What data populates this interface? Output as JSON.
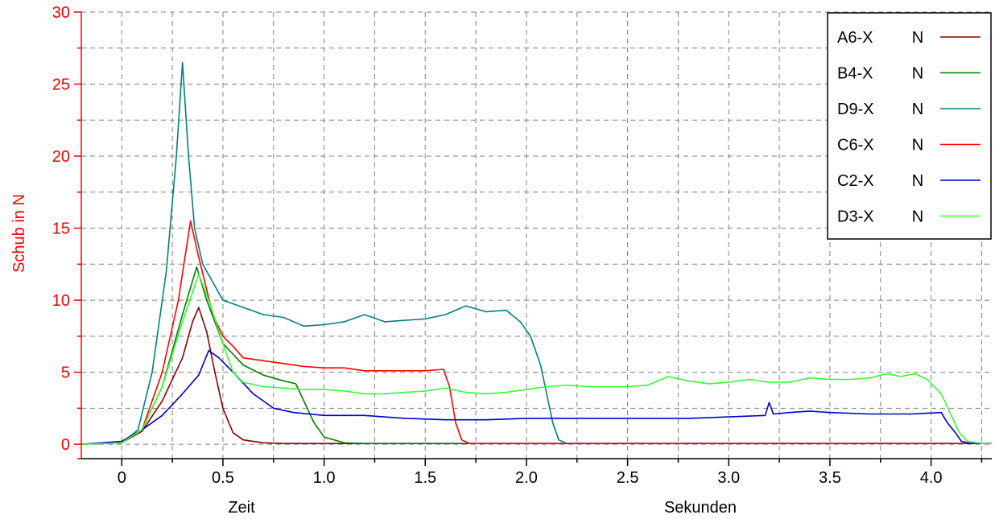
{
  "chart_data": {
    "type": "line",
    "ylabel": "Schub in N",
    "xlabel_left": "Zeit",
    "xlabel_right": "Sekunden",
    "xlim": [
      -0.2,
      4.3
    ],
    "ylim": [
      -1,
      30
    ],
    "x_ticks": [
      "0",
      "0.5",
      "1.0",
      "1.5",
      "2.0",
      "2.5",
      "3.0",
      "3.5",
      "4.0"
    ],
    "y_ticks": [
      "0",
      "5",
      "10",
      "15",
      "20",
      "25",
      "30"
    ],
    "grid": true,
    "legend_position": "top-right",
    "legend_unit": "N",
    "colors": {
      "axis_y": "#ff0000",
      "axis_x": "#000000",
      "grid": "#808080"
    },
    "series": [
      {
        "name": "A6-X",
        "color": "#8b0000",
        "points": [
          [
            -0.2,
            0.0
          ],
          [
            0.0,
            0.1
          ],
          [
            0.1,
            0.9
          ],
          [
            0.2,
            3.0
          ],
          [
            0.3,
            6.0
          ],
          [
            0.35,
            8.5
          ],
          [
            0.38,
            9.5
          ],
          [
            0.42,
            7.8
          ],
          [
            0.46,
            5.0
          ],
          [
            0.5,
            2.5
          ],
          [
            0.55,
            0.8
          ],
          [
            0.6,
            0.3
          ],
          [
            0.7,
            0.1
          ],
          [
            0.8,
            0.05
          ],
          [
            1.0,
            0.05
          ],
          [
            4.3,
            0.05
          ]
        ]
      },
      {
        "name": "B4-X",
        "color": "#008000",
        "points": [
          [
            -0.2,
            0.0
          ],
          [
            0.0,
            0.1
          ],
          [
            0.1,
            1.0
          ],
          [
            0.2,
            4.0
          ],
          [
            0.3,
            9.0
          ],
          [
            0.37,
            12.3
          ],
          [
            0.42,
            10.0
          ],
          [
            0.5,
            7.0
          ],
          [
            0.6,
            5.5
          ],
          [
            0.7,
            4.8
          ],
          [
            0.8,
            4.4
          ],
          [
            0.86,
            4.2
          ],
          [
            0.9,
            3.0
          ],
          [
            0.95,
            1.5
          ],
          [
            1.0,
            0.5
          ],
          [
            1.1,
            0.1
          ],
          [
            1.2,
            0.05
          ],
          [
            4.3,
            0.05
          ]
        ]
      },
      {
        "name": "D9-X",
        "color": "#008080",
        "points": [
          [
            -0.2,
            0.0
          ],
          [
            0.0,
            0.1
          ],
          [
            0.08,
            1.0
          ],
          [
            0.15,
            5.0
          ],
          [
            0.22,
            12.0
          ],
          [
            0.27,
            20.0
          ],
          [
            0.3,
            26.5
          ],
          [
            0.33,
            20.0
          ],
          [
            0.36,
            15.0
          ],
          [
            0.4,
            12.5
          ],
          [
            0.5,
            10.0
          ],
          [
            0.6,
            9.5
          ],
          [
            0.7,
            9.0
          ],
          [
            0.8,
            8.8
          ],
          [
            0.9,
            8.2
          ],
          [
            1.0,
            8.3
          ],
          [
            1.1,
            8.5
          ],
          [
            1.2,
            9.0
          ],
          [
            1.3,
            8.5
          ],
          [
            1.4,
            8.6
          ],
          [
            1.5,
            8.7
          ],
          [
            1.6,
            9.0
          ],
          [
            1.7,
            9.6
          ],
          [
            1.8,
            9.2
          ],
          [
            1.9,
            9.3
          ],
          [
            1.97,
            8.5
          ],
          [
            2.02,
            7.5
          ],
          [
            2.07,
            5.5
          ],
          [
            2.1,
            3.5
          ],
          [
            2.13,
            1.5
          ],
          [
            2.16,
            0.3
          ],
          [
            2.2,
            0.05
          ],
          [
            4.3,
            0.05
          ]
        ]
      },
      {
        "name": "C6-X",
        "color": "#ff0000",
        "points": [
          [
            -0.2,
            0.0
          ],
          [
            0.0,
            0.1
          ],
          [
            0.1,
            1.0
          ],
          [
            0.2,
            5.0
          ],
          [
            0.28,
            10.0
          ],
          [
            0.34,
            15.5
          ],
          [
            0.38,
            13.0
          ],
          [
            0.45,
            9.0
          ],
          [
            0.5,
            7.5
          ],
          [
            0.55,
            6.8
          ],
          [
            0.6,
            6.0
          ],
          [
            0.7,
            5.8
          ],
          [
            0.8,
            5.6
          ],
          [
            0.9,
            5.4
          ],
          [
            1.0,
            5.3
          ],
          [
            1.1,
            5.3
          ],
          [
            1.2,
            5.1
          ],
          [
            1.3,
            5.1
          ],
          [
            1.4,
            5.1
          ],
          [
            1.5,
            5.1
          ],
          [
            1.59,
            5.2
          ],
          [
            1.62,
            4.0
          ],
          [
            1.65,
            1.5
          ],
          [
            1.68,
            0.3
          ],
          [
            1.72,
            0.05
          ],
          [
            4.3,
            0.05
          ]
        ]
      },
      {
        "name": "C2-X",
        "color": "#0000cc",
        "points": [
          [
            -0.2,
            0.0
          ],
          [
            0.0,
            0.2
          ],
          [
            0.1,
            1.0
          ],
          [
            0.2,
            2.0
          ],
          [
            0.3,
            3.5
          ],
          [
            0.38,
            4.8
          ],
          [
            0.43,
            6.5
          ],
          [
            0.48,
            6.0
          ],
          [
            0.55,
            5.0
          ],
          [
            0.65,
            3.5
          ],
          [
            0.75,
            2.5
          ],
          [
            0.85,
            2.2
          ],
          [
            1.0,
            2.0
          ],
          [
            1.2,
            2.0
          ],
          [
            1.4,
            1.8
          ],
          [
            1.6,
            1.7
          ],
          [
            1.8,
            1.7
          ],
          [
            2.0,
            1.8
          ],
          [
            2.2,
            1.8
          ],
          [
            2.4,
            1.8
          ],
          [
            2.6,
            1.8
          ],
          [
            2.8,
            1.8
          ],
          [
            3.0,
            1.9
          ],
          [
            3.18,
            2.0
          ],
          [
            3.2,
            2.9
          ],
          [
            3.22,
            2.1
          ],
          [
            3.3,
            2.2
          ],
          [
            3.4,
            2.3
          ],
          [
            3.5,
            2.2
          ],
          [
            3.7,
            2.1
          ],
          [
            3.9,
            2.1
          ],
          [
            4.05,
            2.2
          ],
          [
            4.08,
            1.5
          ],
          [
            4.12,
            0.8
          ],
          [
            4.15,
            0.2
          ],
          [
            4.2,
            0.05
          ],
          [
            4.3,
            0.05
          ]
        ]
      },
      {
        "name": "D3-X",
        "color": "#33ff33",
        "points": [
          [
            -0.2,
            0.0
          ],
          [
            0.0,
            0.1
          ],
          [
            0.1,
            1.0
          ],
          [
            0.2,
            4.0
          ],
          [
            0.3,
            8.5
          ],
          [
            0.38,
            11.8
          ],
          [
            0.43,
            10.0
          ],
          [
            0.5,
            7.0
          ],
          [
            0.55,
            5.0
          ],
          [
            0.6,
            4.3
          ],
          [
            0.7,
            4.0
          ],
          [
            0.8,
            3.9
          ],
          [
            0.9,
            3.8
          ],
          [
            1.0,
            3.8
          ],
          [
            1.1,
            3.7
          ],
          [
            1.2,
            3.5
          ],
          [
            1.3,
            3.5
          ],
          [
            1.4,
            3.6
          ],
          [
            1.5,
            3.7
          ],
          [
            1.6,
            3.9
          ],
          [
            1.7,
            3.6
          ],
          [
            1.8,
            3.5
          ],
          [
            1.9,
            3.6
          ],
          [
            2.0,
            3.8
          ],
          [
            2.1,
            4.0
          ],
          [
            2.2,
            4.1
          ],
          [
            2.3,
            4.0
          ],
          [
            2.4,
            4.0
          ],
          [
            2.5,
            4.0
          ],
          [
            2.6,
            4.1
          ],
          [
            2.7,
            4.7
          ],
          [
            2.8,
            4.4
          ],
          [
            2.9,
            4.2
          ],
          [
            3.0,
            4.3
          ],
          [
            3.1,
            4.5
          ],
          [
            3.2,
            4.3
          ],
          [
            3.3,
            4.3
          ],
          [
            3.4,
            4.6
          ],
          [
            3.5,
            4.5
          ],
          [
            3.6,
            4.5
          ],
          [
            3.7,
            4.6
          ],
          [
            3.78,
            4.9
          ],
          [
            3.85,
            4.7
          ],
          [
            3.92,
            4.9
          ],
          [
            3.98,
            4.5
          ],
          [
            4.05,
            3.5
          ],
          [
            4.1,
            2.0
          ],
          [
            4.14,
            0.8
          ],
          [
            4.18,
            0.2
          ],
          [
            4.25,
            0.05
          ],
          [
            4.3,
            0.05
          ]
        ]
      }
    ]
  }
}
